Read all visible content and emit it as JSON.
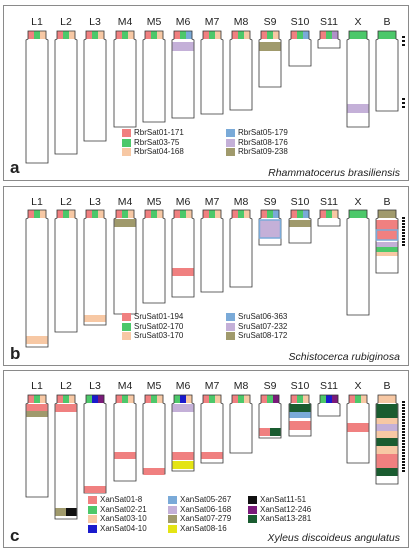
{
  "colors": {
    "red": "#f08080",
    "green": "#4cc86a",
    "peach": "#f7c8a4",
    "blue": "#7aaad8",
    "lilac": "#c4b0d8",
    "olive": "#a09a6c",
    "navy": "#1a1acc",
    "yellow": "#e4e414",
    "black": "#111111",
    "purple": "#7a1a7a",
    "darkgreen": "#1a5c30",
    "mauve": "#b090c8"
  },
  "chromosomes": [
    "L1",
    "L2",
    "L3",
    "M4",
    "M5",
    "M6",
    "M7",
    "M8",
    "S9",
    "S10",
    "S11",
    "X",
    "B"
  ],
  "panels": [
    {
      "id": "a",
      "label": "a",
      "species": "Rhammatocerus brasiliensis",
      "legend": [
        {
          "text": "RbrSat01-171",
          "color": "#f08080"
        },
        {
          "text": "RbrSat03-75",
          "color": "#4cc86a"
        },
        {
          "text": "RbrSat04-168",
          "color": "#f7c8a4"
        },
        {
          "text": "RbrSat05-179",
          "color": "#7aaad8"
        },
        {
          "text": "RbrSat08-176",
          "color": "#c4b0d8"
        },
        {
          "text": "RbrSat09-238",
          "color": "#a09a6c"
        }
      ]
    },
    {
      "id": "b",
      "label": "b",
      "species": "Schistocerca rubiginosa",
      "legend": [
        {
          "text": "SruSat01-194",
          "color": "#f08080"
        },
        {
          "text": "SruSat02-170",
          "color": "#4cc86a"
        },
        {
          "text": "SruSat03-170",
          "color": "#f7c8a4"
        },
        {
          "text": "SruSat06-363",
          "color": "#7aaad8"
        },
        {
          "text": "SruSat07-232",
          "color": "#c4b0d8"
        },
        {
          "text": "SruSat08-172",
          "color": "#a09a6c"
        }
      ]
    },
    {
      "id": "c",
      "label": "c",
      "species": "Xyleus discoideus angulatus",
      "legend": [
        {
          "text": "XanSat01-8",
          "color": "#f08080"
        },
        {
          "text": "XanSat02-21",
          "color": "#4cc86a"
        },
        {
          "text": "XanSat03-10",
          "color": "#f7c8a4"
        },
        {
          "text": "XanSat04-10",
          "color": "#1a1acc"
        },
        {
          "text": "XanSat05-267",
          "color": "#7aaad8"
        },
        {
          "text": "XanSat06-168",
          "color": "#c4b0d8"
        },
        {
          "text": "XanSat07-279",
          "color": "#a09a6c"
        },
        {
          "text": "XanSat08-16",
          "color": "#e4e414"
        },
        {
          "text": "XanSat11-51",
          "color": "#111111"
        },
        {
          "text": "XanSat12-246",
          "color": "#7a1a7a"
        },
        {
          "text": "XanSat13-281",
          "color": "#1a5c30"
        }
      ]
    }
  ]
}
